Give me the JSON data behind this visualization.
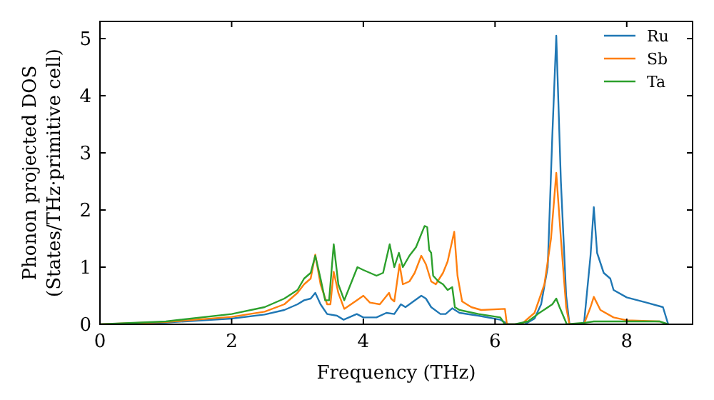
{
  "chart_data": {
    "type": "line",
    "xlabel": "Frequency (THz)",
    "ylabel": "Phonon projected DOS\n(States/THz·primitive cell)",
    "xlim": [
      0,
      9
    ],
    "ylim": [
      0,
      5.3
    ],
    "xticks": [
      0,
      2,
      4,
      6,
      8
    ],
    "yticks": [
      0,
      1,
      2,
      3,
      4,
      5
    ],
    "legend": "top right",
    "grid": false,
    "marker": "none",
    "line_style": "solid",
    "series": [
      {
        "name": "Ru",
        "color": "#1f77b4",
        "x": [
          0,
          1,
          2,
          2.5,
          2.8,
          3.0,
          3.1,
          3.2,
          3.27,
          3.35,
          3.45,
          3.6,
          3.7,
          3.9,
          4.0,
          4.2,
          4.35,
          4.47,
          4.57,
          4.64,
          4.88,
          4.95,
          5.03,
          5.17,
          5.25,
          5.35,
          5.46,
          5.75,
          6.08,
          6.2,
          6.45,
          6.6,
          6.7,
          6.8,
          6.87,
          6.93,
          7.0,
          7.08,
          7.13,
          7.35,
          7.45,
          7.5,
          7.55,
          7.65,
          7.75,
          7.8,
          8.0,
          8.3,
          8.55,
          8.63
        ],
        "values": [
          0,
          0.03,
          0.1,
          0.17,
          0.25,
          0.35,
          0.42,
          0.45,
          0.55,
          0.35,
          0.18,
          0.15,
          0.08,
          0.18,
          0.12,
          0.12,
          0.2,
          0.18,
          0.35,
          0.3,
          0.5,
          0.45,
          0.3,
          0.18,
          0.18,
          0.28,
          0.2,
          0.15,
          0.08,
          0,
          0,
          0.1,
          0.35,
          1.0,
          3.3,
          5.05,
          2.5,
          0.5,
          0,
          0,
          1.2,
          2.05,
          1.25,
          0.9,
          0.8,
          0.6,
          0.47,
          0.38,
          0.3,
          0
        ]
      },
      {
        "name": "Sb",
        "color": "#ff7f0e",
        "x": [
          0,
          1,
          2,
          2.5,
          2.8,
          3.0,
          3.1,
          3.2,
          3.27,
          3.35,
          3.45,
          3.5,
          3.55,
          3.62,
          3.71,
          3.9,
          4.0,
          4.1,
          4.25,
          4.39,
          4.42,
          4.47,
          4.55,
          4.6,
          4.7,
          4.78,
          4.88,
          4.95,
          5.03,
          5.1,
          5.21,
          5.28,
          5.38,
          5.43,
          5.5,
          5.64,
          5.79,
          6.15,
          6.18,
          6.4,
          6.6,
          6.75,
          6.85,
          6.93,
          7.0,
          7.08,
          7.13,
          7.35,
          7.45,
          7.5,
          7.6,
          7.8,
          8.0,
          8.5
        ],
        "values": [
          0,
          0.04,
          0.13,
          0.22,
          0.35,
          0.55,
          0.7,
          0.8,
          1.22,
          0.7,
          0.35,
          0.35,
          0.92,
          0.55,
          0.27,
          0.42,
          0.5,
          0.38,
          0.35,
          0.55,
          0.45,
          0.4,
          1.05,
          0.7,
          0.75,
          0.9,
          1.2,
          1.05,
          0.75,
          0.7,
          0.9,
          1.1,
          1.62,
          0.85,
          0.4,
          0.3,
          0.25,
          0.27,
          0,
          0,
          0.2,
          0.7,
          1.5,
          2.65,
          1.5,
          0.3,
          0,
          0,
          0.3,
          0.48,
          0.25,
          0.12,
          0.07,
          0.05
        ]
      },
      {
        "name": "Ta",
        "color": "#2ca02c",
        "x": [
          0,
          1,
          2,
          2.5,
          2.8,
          3.0,
          3.1,
          3.2,
          3.27,
          3.35,
          3.42,
          3.48,
          3.55,
          3.62,
          3.71,
          3.91,
          4.0,
          4.2,
          4.3,
          4.4,
          4.47,
          4.54,
          4.6,
          4.7,
          4.8,
          4.93,
          4.97,
          5.0,
          5.03,
          5.06,
          5.14,
          5.21,
          5.28,
          5.35,
          5.39,
          5.46,
          5.75,
          6.08,
          6.15,
          6.3,
          6.5,
          6.65,
          6.87,
          6.93,
          6.98,
          7.09,
          7.38,
          7.5,
          8.5,
          8.63
        ],
        "values": [
          0,
          0.05,
          0.18,
          0.3,
          0.45,
          0.6,
          0.8,
          0.9,
          1.2,
          0.8,
          0.42,
          0.42,
          1.4,
          0.7,
          0.42,
          1.0,
          0.95,
          0.85,
          0.9,
          1.4,
          1.0,
          1.25,
          1.0,
          1.2,
          1.35,
          1.72,
          1.7,
          1.3,
          1.25,
          0.85,
          0.75,
          0.7,
          0.6,
          0.65,
          0.3,
          0.25,
          0.18,
          0.12,
          0,
          0,
          0.05,
          0.18,
          0.35,
          0.45,
          0.3,
          0,
          0.03,
          0.05,
          0.05,
          0
        ]
      }
    ]
  }
}
